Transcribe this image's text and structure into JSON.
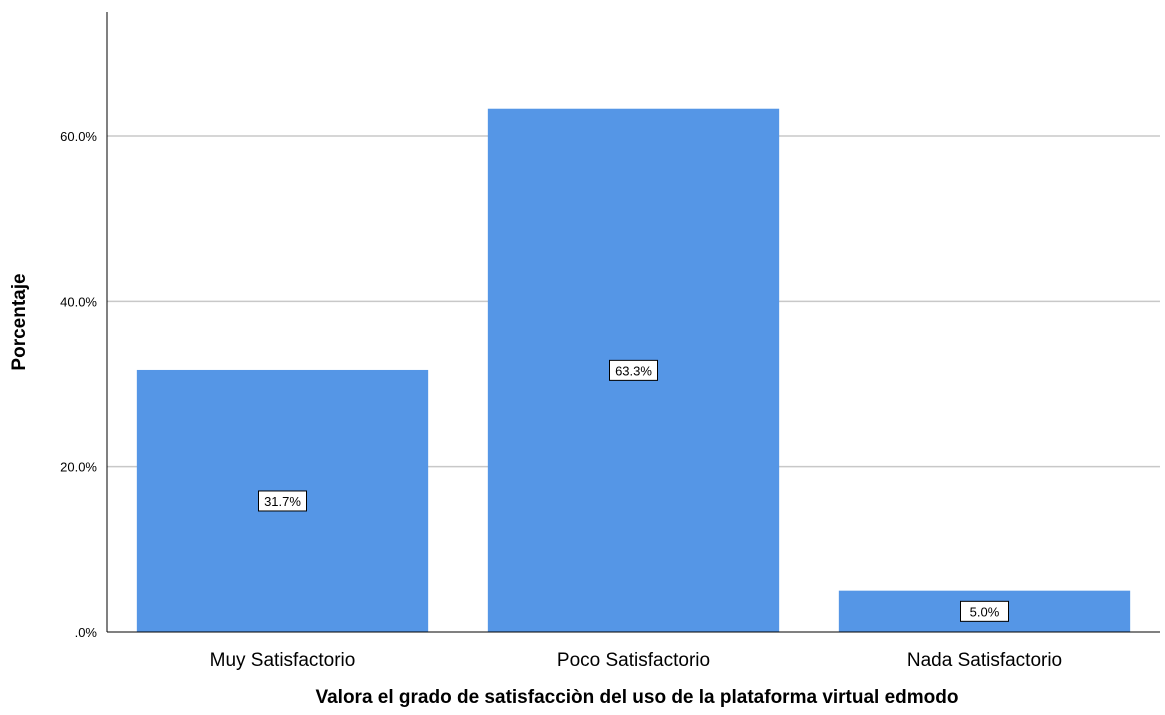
{
  "chart_data": {
    "type": "bar",
    "categories": [
      "Muy Satisfactorio",
      "Poco Satisfactorio",
      "Nada Satisfactorio"
    ],
    "values": [
      31.7,
      63.3,
      5.0
    ],
    "data_labels": [
      "31.7%",
      "63.3%",
      "5.0%"
    ],
    "xlabel": "Valora el grado de satisfacciòn del uso de la plataforma virtual edmodo",
    "ylabel": "Porcentaje",
    "ylim": [
      0,
      75
    ],
    "yticks": [
      0,
      20,
      40,
      60
    ],
    "ytick_labels": [
      ".0%",
      "20.0%",
      "40.0%",
      "60.0%"
    ],
    "grid": true,
    "bar_color": "#5596e6",
    "grid_color": "#c8c8c8"
  }
}
